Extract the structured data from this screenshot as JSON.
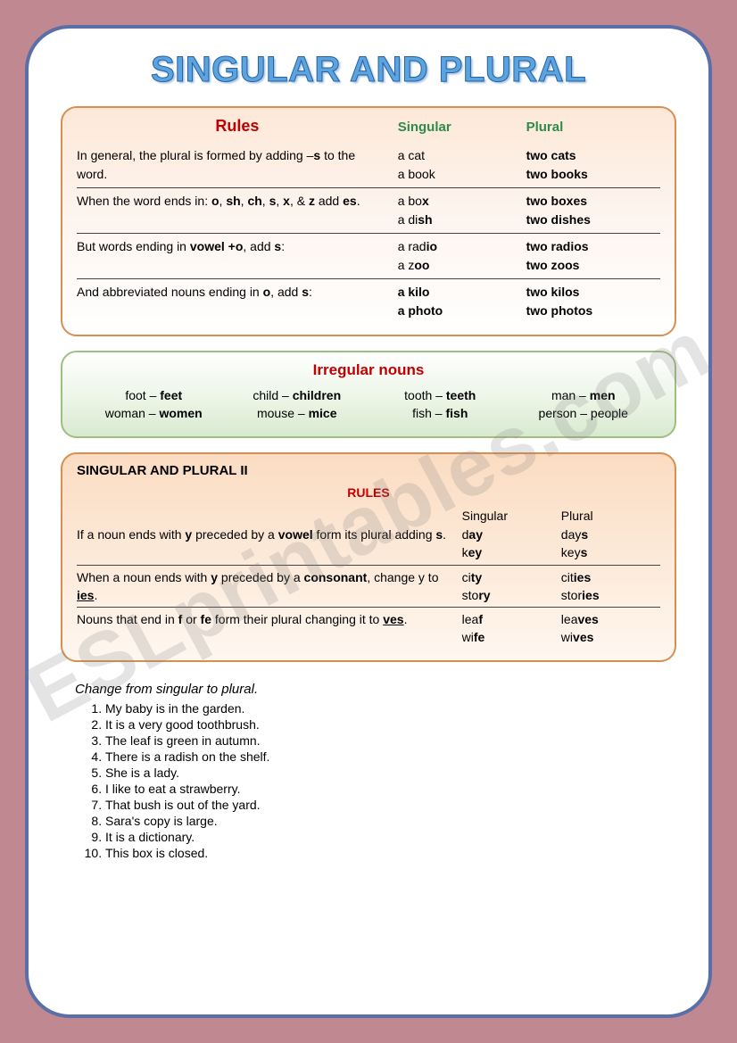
{
  "title": "SINGULAR AND PLURAL",
  "watermark": "ESLprintables.com",
  "rulesCard": {
    "heading": "Rules",
    "colSingular": "Singular",
    "colPlural": "Plural",
    "rows": [
      {
        "ruleHtml": "In general, the plural is formed by adding –<span class='b'>s</span> to the word.",
        "singHtml": "a cat<br>a book",
        "plurHtml": "two cat<span class='b'>s</span><br>two books"
      },
      {
        "ruleHtml": "When the word ends in: <span class='b'>o</span>, <span class='b'>sh</span>, <span class='b'>ch</span>, <span class='b'>s</span>, <span class='b'>x</span>, &amp; <span class='b'>z</span> add <span class='b'>es</span>.",
        "singHtml": "a bo<span class='b'>x</span><br>a di<span class='b'>sh</span>",
        "plurHtml": "two boxes<br>two dish<span class='b'>es</span>"
      },
      {
        "ruleHtml": "But words ending in <span class='b'>vowel +o</span>, add <span class='b'>s</span>:",
        "singHtml": "a rad<span class='b'>io</span><br>a z<span class='b'>oo</span>",
        "plurHtml": "two rad<span class='b'>ios</span><br>two z<span class='b'>oos</span>"
      },
      {
        "ruleHtml": "And abbreviated nouns ending in <span class='b'>o</span>, add <span class='b'>s</span>:",
        "singHtml": "<span class='b'>a kilo<br>a photo</span>",
        "plurHtml": "two kilos<br>two photos"
      }
    ]
  },
  "irregular": {
    "heading": "Irregular nouns",
    "items": [
      "foot – <b>feet</b>",
      "child – <b>children</b>",
      "tooth – <b>teeth</b>",
      "man – <b>men</b>",
      "woman – <b>women</b>",
      "mouse – <b>mice</b>",
      "fish – <b>fish</b>",
      "person – people"
    ]
  },
  "rules2": {
    "heading": "SINGULAR AND PLURAL II",
    "rulesLabel": "RULES",
    "colSingular": "Singular",
    "colPlural": "Plural",
    "rows": [
      {
        "ruleHtml": "If a noun ends with <span class='b'>y</span> preceded by a <span class='b'>vowel</span> form its plural adding <span class='b'>s</span>.",
        "singHtml": "d<span class='b'>ay</span><br>k<span class='b'>ey</span>",
        "plurHtml": "day<span class='b'>s</span><br>key<span class='b'>s</span>"
      },
      {
        "ruleHtml": "When a noun ends with <span class='b'>y</span> preceded by a <span class='b'>consonant</span>, change y to <span class='b u'>ies</span>.",
        "singHtml": "ci<span class='b'>ty</span><br>sto<span class='b'>ry</span>",
        "plurHtml": "cit<span class='b'>ies</span><br>stor<span class='b'>ies</span>"
      },
      {
        "ruleHtml": "Nouns that end in <span class='b'>f</span> or <span class='b'>fe</span> form their plural changing it to <span class='b u'>ves</span>.",
        "singHtml": "lea<span class='b'>f</span><br>wi<span class='b'>fe</span>",
        "plurHtml": "lea<span class='b'>ves</span><br>wi<span class='b'>ves</span>"
      }
    ]
  },
  "exercise": {
    "instruction": "Change from singular to plural.",
    "items": [
      "My baby is in the garden.",
      "It is a very good toothbrush.",
      "The leaf is green in autumn.",
      "There is a radish on the shelf.",
      "She is a lady.",
      "I like to eat a strawberry.",
      "That bush is out of the yard.",
      "Sara's copy is large.",
      "It is a dictionary.",
      "This box is closed."
    ]
  },
  "colors": {
    "background": "#c08890",
    "pageBorder": "#5a6fa8",
    "titleFill": "#5aa4e0",
    "ruleHeading": "#c00000",
    "greenLabel": "#2e8b4a"
  }
}
